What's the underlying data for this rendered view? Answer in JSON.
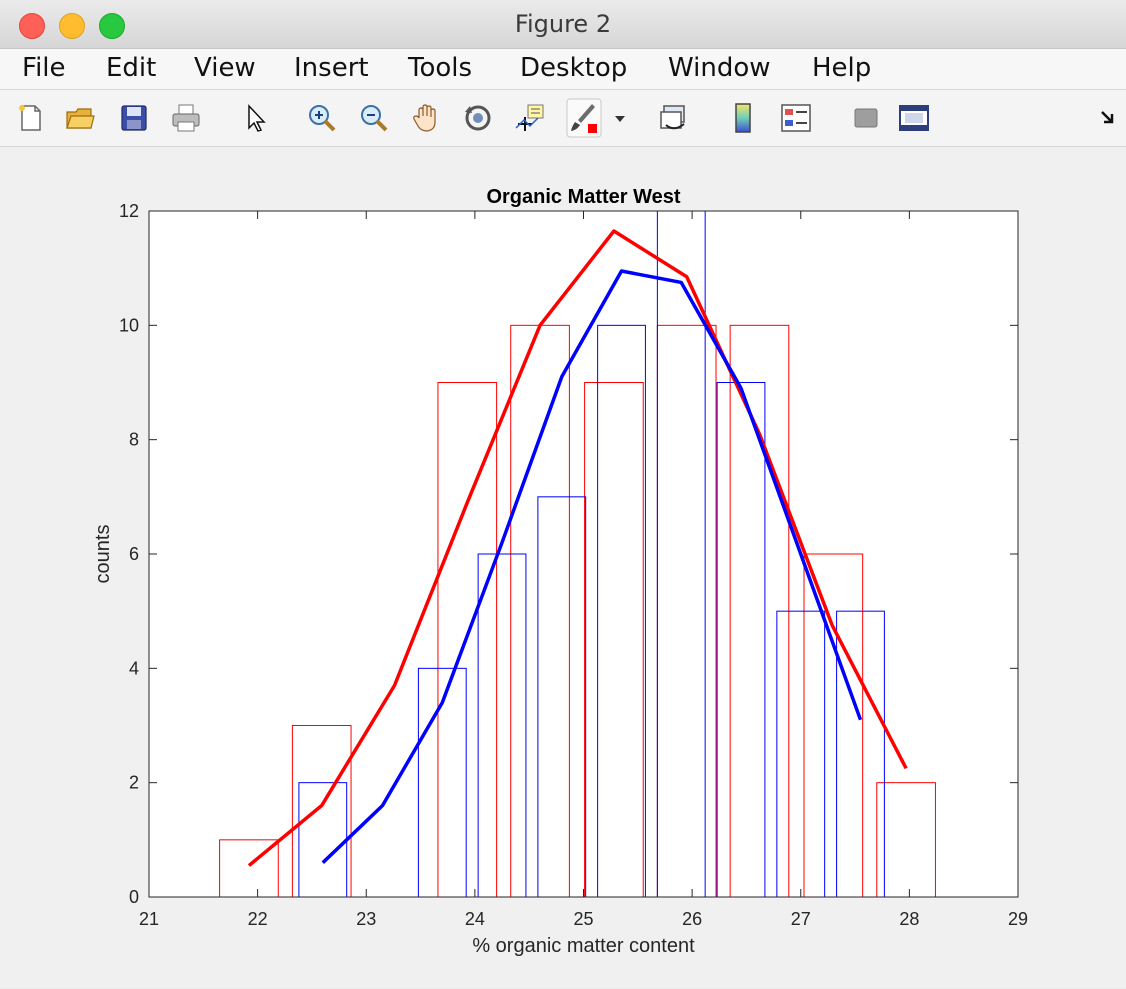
{
  "window": {
    "title": "Figure 2"
  },
  "menu": [
    "File",
    "Edit",
    "View",
    "Insert",
    "Tools",
    "Desktop",
    "Window",
    "Help"
  ],
  "toolbar": {
    "icons": [
      "new-figure-icon",
      "open-file-icon",
      "save-icon",
      "print-icon",
      "pointer-icon",
      "zoom-in-icon",
      "zoom-out-icon",
      "pan-hand-icon",
      "rotate-3d-icon",
      "data-cursor-icon",
      "brush-icon",
      "brush-dropdown-icon",
      "link-plot-icon",
      "colorbar-icon",
      "legend-icon",
      "hide-plot-tools-icon",
      "show-plot-tools-icon",
      "dock-arrow-icon"
    ]
  },
  "chart_data": {
    "type": "bar",
    "title": "Organic Matter West",
    "xlabel": "% organic matter content",
    "ylabel": "counts",
    "xlim": [
      21,
      29
    ],
    "ylim": [
      0,
      12
    ],
    "xticks": [
      "21",
      "22",
      "23",
      "24",
      "25",
      "26",
      "27",
      "28",
      "29"
    ],
    "yticks": [
      "0",
      "2",
      "4",
      "6",
      "8",
      "10",
      "12"
    ],
    "grid": false,
    "series": [
      {
        "color": "#ff0000",
        "bars": [
          {
            "x0": 21.65,
            "x1": 22.19,
            "count": 1
          },
          {
            "x0": 22.32,
            "x1": 22.86,
            "count": 3
          },
          {
            "x0": 23.66,
            "x1": 24.2,
            "count": 9
          },
          {
            "x0": 24.33,
            "x1": 24.87,
            "count": 10
          },
          {
            "x0": 25.01,
            "x1": 25.55,
            "count": 9
          },
          {
            "x0": 25.68,
            "x1": 26.22,
            "count": 10
          },
          {
            "x0": 26.35,
            "x1": 26.89,
            "count": 10
          },
          {
            "x0": 27.03,
            "x1": 27.57,
            "count": 6
          },
          {
            "x0": 27.7,
            "x1": 28.24,
            "count": 2
          }
        ],
        "curve_x": [
          21.92,
          22.59,
          23.26,
          23.93,
          24.6,
          25.28,
          25.95,
          26.62,
          27.29,
          27.97
        ],
        "curve_y": [
          0.55,
          1.6,
          3.7,
          6.9,
          10.0,
          11.65,
          10.85,
          8.1,
          4.75,
          2.25
        ]
      },
      {
        "color": "#0000ff",
        "bars": [
          {
            "x0": 22.38,
            "x1": 22.82,
            "count": 2
          },
          {
            "x0": 23.48,
            "x1": 23.92,
            "count": 4
          },
          {
            "x0": 24.03,
            "x1": 24.47,
            "count": 6
          },
          {
            "x0": 24.58,
            "x1": 25.02,
            "count": 7
          },
          {
            "x0": 25.13,
            "x1": 25.57,
            "count": 10
          },
          {
            "x0": 25.68,
            "x1": 26.12,
            "count": 12.6
          },
          {
            "x0": 26.23,
            "x1": 26.67,
            "count": 9
          },
          {
            "x0": 26.78,
            "x1": 27.22,
            "count": 5
          },
          {
            "x0": 27.33,
            "x1": 27.77,
            "count": 5
          }
        ],
        "curve_x": [
          22.6,
          23.15,
          23.7,
          24.25,
          24.8,
          25.35,
          25.9,
          26.45,
          27.0,
          27.55
        ],
        "curve_y": [
          0.6,
          1.6,
          3.4,
          6.2,
          9.1,
          10.95,
          10.75,
          8.9,
          6.0,
          3.1
        ]
      }
    ]
  }
}
